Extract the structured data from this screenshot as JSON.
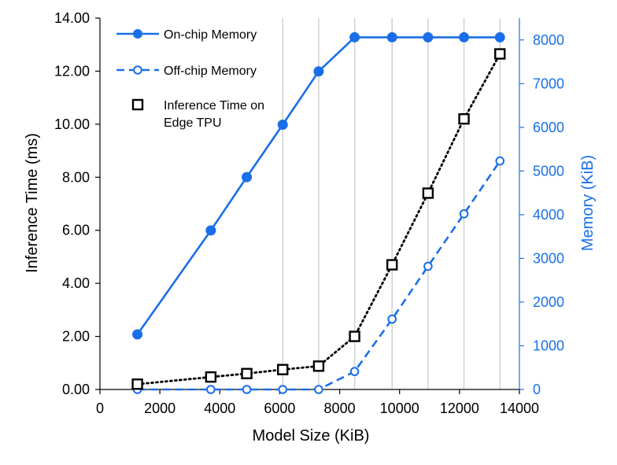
{
  "chart_data": {
    "type": "line",
    "title": "",
    "xlabel": "Model Size (KiB)",
    "ylabel_left": "Inference Time (ms)",
    "ylabel_right": "Memory (KiB)",
    "xlim": [
      0,
      14000
    ],
    "ylim_left": [
      0,
      14
    ],
    "ylim_right": [
      0,
      8500
    ],
    "x_ticks": [
      "0",
      "2000",
      "4000",
      "6000",
      "8000",
      "10000",
      "12000",
      "14000"
    ],
    "y_left_ticks": [
      "0.00",
      "2.00",
      "4.00",
      "6.00",
      "8.00",
      "10.00",
      "12.00",
      "14.00"
    ],
    "y_right_ticks": [
      "0",
      "1000",
      "2000",
      "3000",
      "4000",
      "5000",
      "6000",
      "7000",
      "8000"
    ],
    "vertical_gridlines_x": [
      6100,
      7300,
      8500,
      9750,
      10950,
      12150,
      13350
    ],
    "legend_position": "top-left",
    "colors": {
      "memory": "#1a6fe8",
      "time": "#000000",
      "grid": "#d0d0d0"
    },
    "series": [
      {
        "name": "On-chip Memory",
        "axis": "right",
        "style": "solid-filled-circle",
        "x": [
          1250,
          3700,
          4900,
          6100,
          7300,
          8500,
          9750,
          10950,
          12150,
          13350
        ],
        "y": [
          1260,
          3640,
          4860,
          6060,
          7280,
          8060,
          8060,
          8060,
          8060,
          8060
        ]
      },
      {
        "name": "Off-chip Memory",
        "axis": "right",
        "style": "dashed-open-circle",
        "x": [
          1250,
          3700,
          4900,
          6100,
          7300,
          8500,
          9750,
          10950,
          12150,
          13350
        ],
        "y": [
          0,
          0,
          0,
          0,
          0,
          410,
          1610,
          2820,
          4020,
          5230
        ]
      },
      {
        "name": "Inference Time on Edge TPU",
        "axis": "left",
        "style": "dotted-open-square",
        "x": [
          1250,
          3700,
          4900,
          6100,
          7300,
          8500,
          9750,
          10950,
          12150,
          13350
        ],
        "y": [
          0.2,
          0.47,
          0.6,
          0.75,
          0.88,
          2.0,
          4.7,
          7.4,
          10.2,
          12.65
        ]
      }
    ],
    "legend": [
      {
        "label": "On-chip Memory"
      },
      {
        "label": "Off-chip Memory"
      },
      {
        "label": "Inference Time on\nEdge TPU"
      }
    ]
  }
}
